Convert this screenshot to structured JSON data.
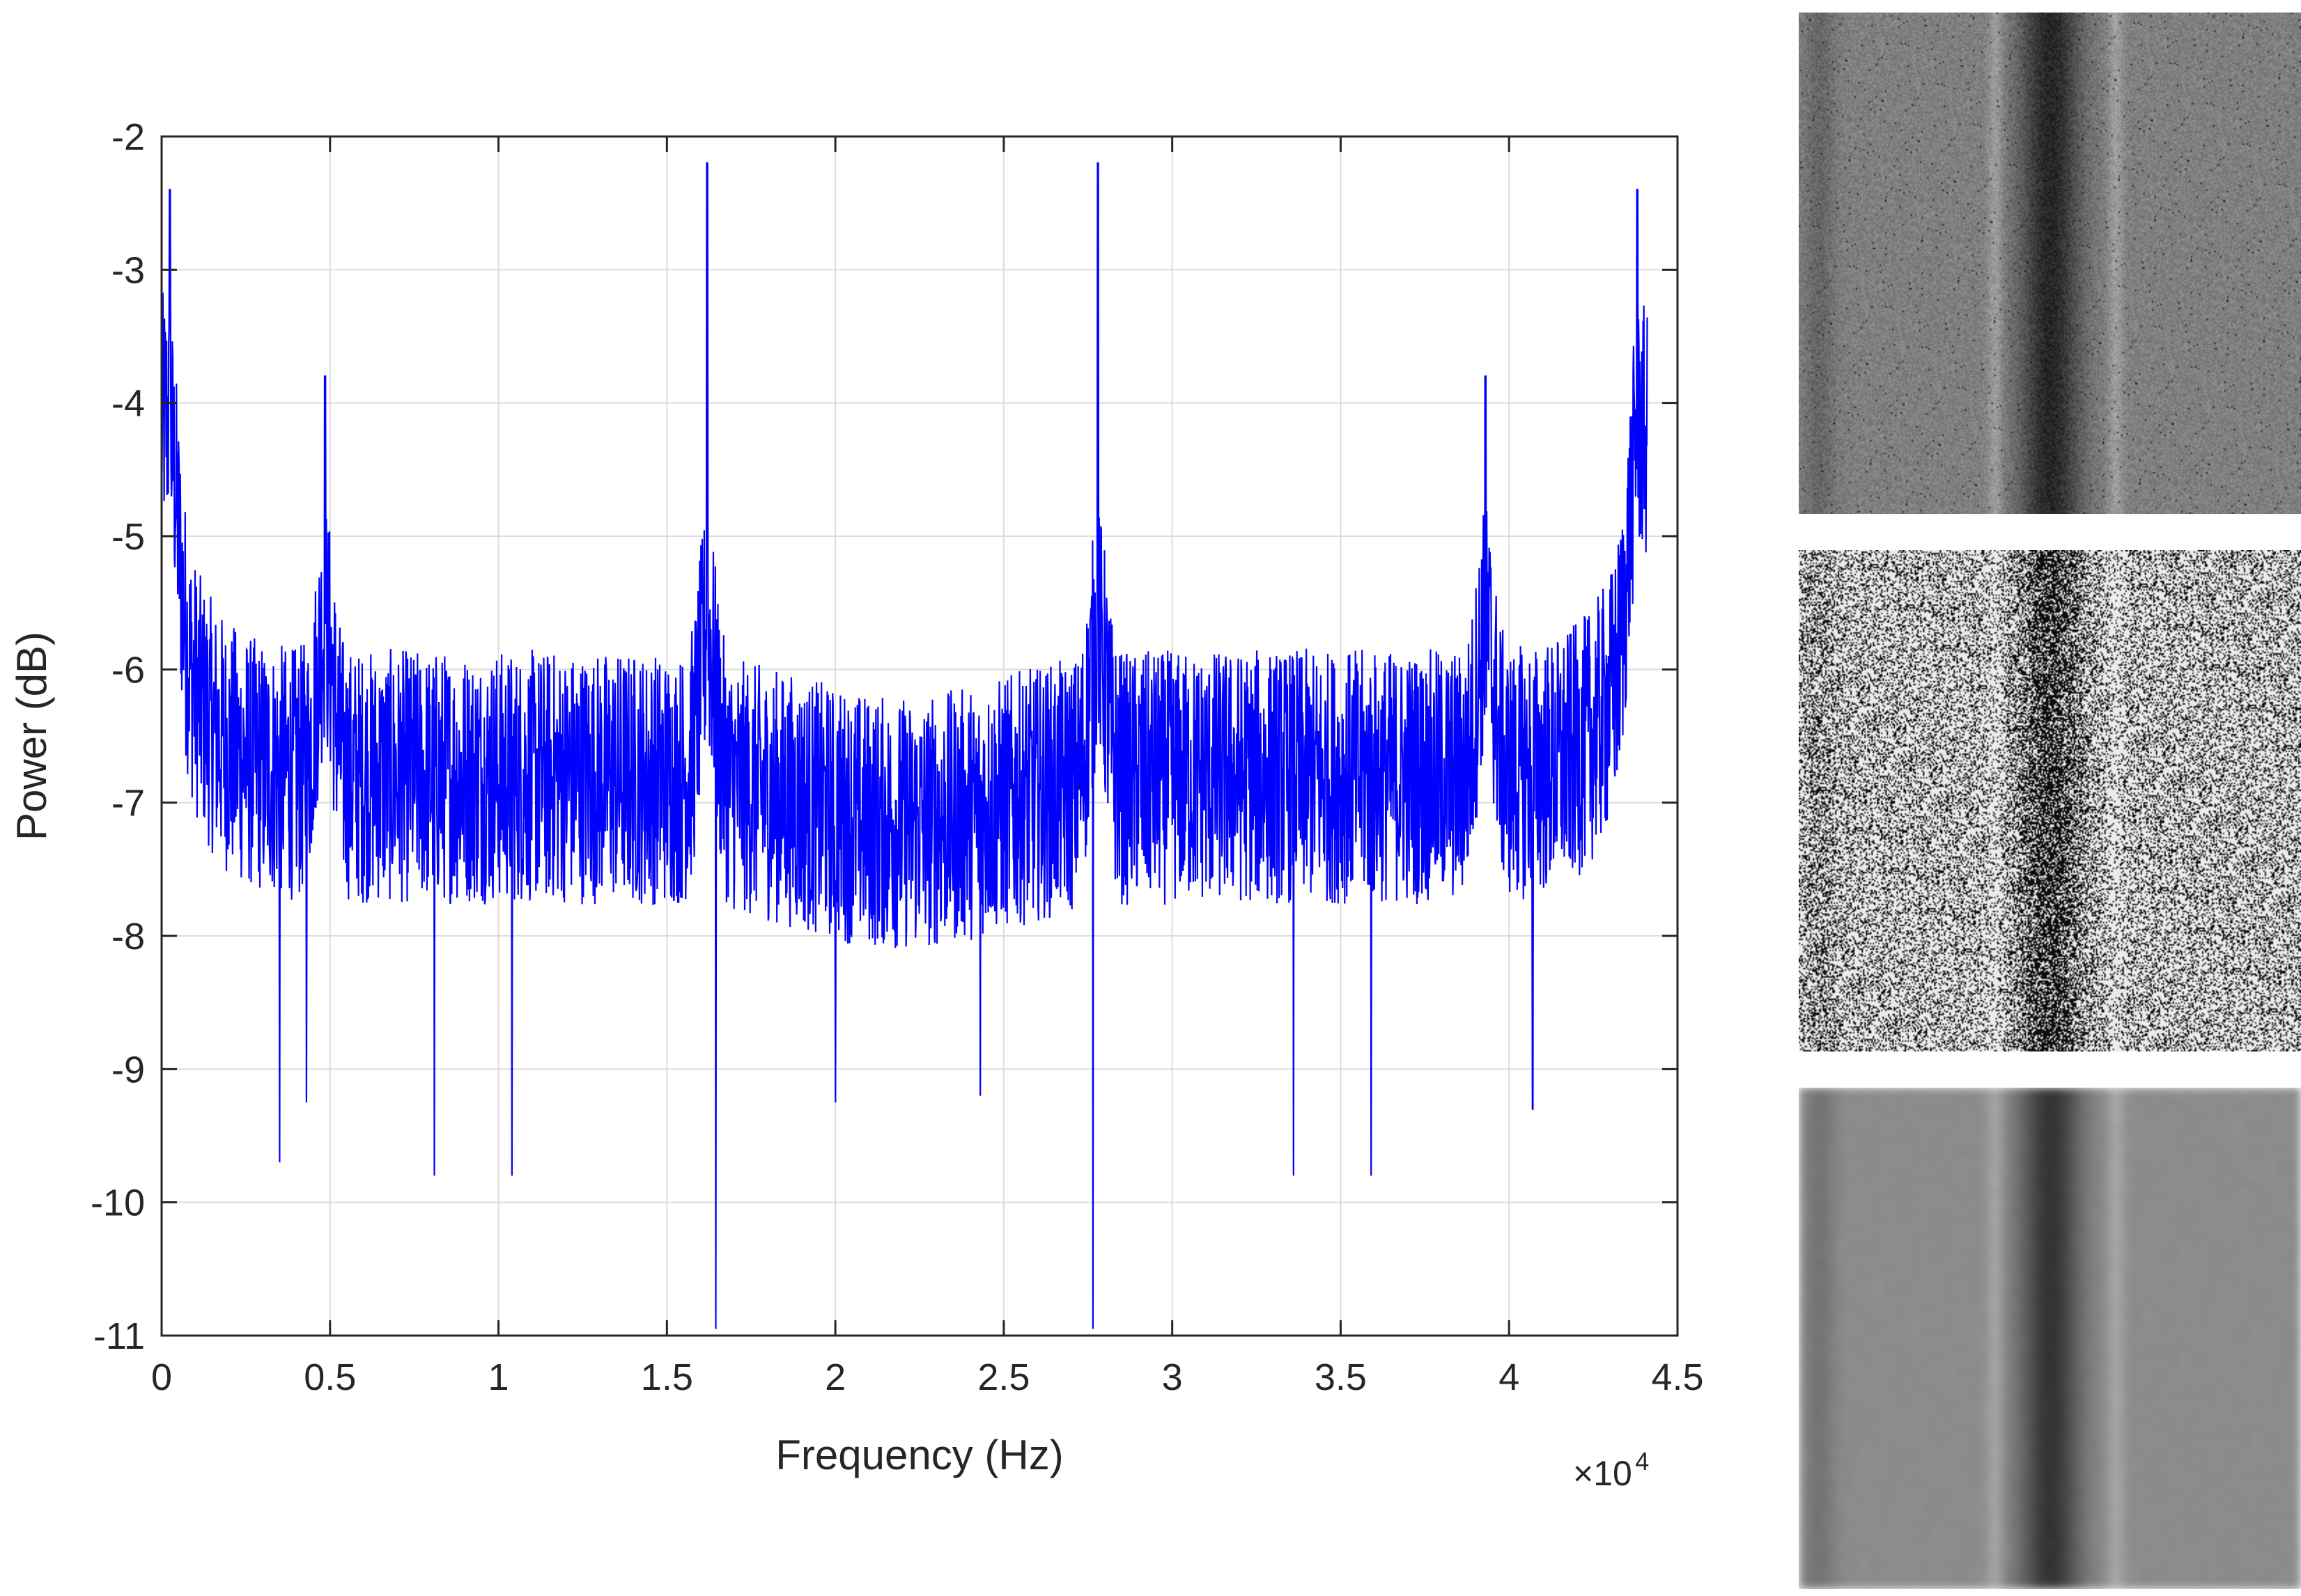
{
  "chart_data": {
    "type": "line",
    "xlabel": "Frequency (Hz)",
    "ylabel": "Power (dB)",
    "x_exponent_label": "×10",
    "x_exponent_power": "4",
    "xlim": [
      0,
      45000
    ],
    "ylim": [
      -11,
      -2
    ],
    "grid": true,
    "x_ticks": [
      {
        "value": 0,
        "label": "0"
      },
      {
        "value": 5000,
        "label": "0.5"
      },
      {
        "value": 10000,
        "label": "1"
      },
      {
        "value": 15000,
        "label": "1.5"
      },
      {
        "value": 20000,
        "label": "2"
      },
      {
        "value": 25000,
        "label": "2.5"
      },
      {
        "value": 30000,
        "label": "3"
      },
      {
        "value": 35000,
        "label": "3.5"
      },
      {
        "value": 40000,
        "label": "4"
      },
      {
        "value": 45000,
        "label": "4.5"
      }
    ],
    "y_ticks": [
      {
        "value": -2,
        "label": "-2"
      },
      {
        "value": -3,
        "label": "-3"
      },
      {
        "value": -4,
        "label": "-4"
      },
      {
        "value": -5,
        "label": "-5"
      },
      {
        "value": -6,
        "label": "-6"
      },
      {
        "value": -7,
        "label": "-7"
      },
      {
        "value": -8,
        "label": "-8"
      },
      {
        "value": -9,
        "label": "-9"
      },
      {
        "value": -10,
        "label": "-10"
      },
      {
        "value": -11,
        "label": "-11"
      }
    ],
    "series": [
      {
        "color": "#0000ff",
        "baseline_mean": -6.9,
        "noise_amplitude": 1.2,
        "x_max": 44100,
        "peaks": [
          {
            "x": 250,
            "peak": -2.4
          },
          {
            "x": 4850,
            "peak": -3.8
          },
          {
            "x": 16200,
            "peak": -2.2
          },
          {
            "x": 27800,
            "peak": -2.2
          },
          {
            "x": 39300,
            "peak": -3.8
          },
          {
            "x": 43800,
            "peak": -2.4
          }
        ],
        "dips": [
          {
            "x": 16450,
            "value": -10.95
          },
          {
            "x": 27650,
            "value": -10.95
          },
          {
            "x": 8100,
            "value": -9.8
          },
          {
            "x": 10400,
            "value": -9.8
          },
          {
            "x": 3500,
            "value": -9.7
          },
          {
            "x": 33600,
            "value": -9.8
          },
          {
            "x": 35900,
            "value": -9.8
          },
          {
            "x": 4300,
            "value": -9.25
          },
          {
            "x": 20000,
            "value": -9.25
          },
          {
            "x": 24300,
            "value": -9.2
          },
          {
            "x": 40700,
            "value": -9.3
          }
        ]
      }
    ]
  },
  "spectrogram_panels": [
    {
      "name": "spectrogram-panel-1",
      "style": "fine-gray",
      "base_gray": 0.5,
      "contrast": 0.15
    },
    {
      "name": "spectrogram-panel-2",
      "style": "speckle",
      "base_gray": 0.75,
      "contrast": 0.5
    },
    {
      "name": "spectrogram-panel-3",
      "style": "blurred",
      "base_gray": 0.55,
      "contrast": 0.3
    }
  ]
}
